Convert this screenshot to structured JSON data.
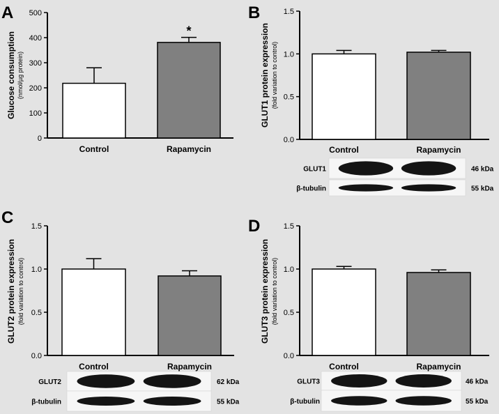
{
  "chart_data": [
    {
      "panel": "A",
      "type": "bar",
      "categories": [
        "Control",
        "Rapamycin"
      ],
      "values": [
        218,
        381
      ],
      "errors": [
        62,
        20
      ],
      "significance": [
        "",
        "*"
      ],
      "bar_colors": [
        "#ffffff",
        "#808080"
      ],
      "ylabel": "Glucose consumption",
      "ylabel_sub": "(nmol/µg protein)",
      "ylim": [
        0,
        500
      ],
      "yticks": [
        "0",
        "100",
        "200",
        "300",
        "400",
        "500"
      ],
      "grid": false,
      "blots": []
    },
    {
      "panel": "B",
      "type": "bar",
      "categories": [
        "Control",
        "Rapamycin"
      ],
      "values": [
        1.0,
        1.02
      ],
      "errors": [
        0.04,
        0.02
      ],
      "significance": [
        "",
        ""
      ],
      "bar_colors": [
        "#ffffff",
        "#808080"
      ],
      "ylabel": "GLUT1 protein expression",
      "ylabel_sub": "(fold variation to control)",
      "ylim": [
        0,
        1.5
      ],
      "yticks": [
        "0.0",
        "0.5",
        "1.0",
        "1.5"
      ],
      "grid": false,
      "blots": [
        {
          "label": "GLUT1",
          "kda": "46 kDa"
        },
        {
          "label": "β-tubulin",
          "kda": "55 kDa"
        }
      ]
    },
    {
      "panel": "C",
      "type": "bar",
      "categories": [
        "Control",
        "Rapamycin"
      ],
      "values": [
        1.0,
        0.92
      ],
      "errors": [
        0.12,
        0.06
      ],
      "significance": [
        "",
        ""
      ],
      "bar_colors": [
        "#ffffff",
        "#808080"
      ],
      "ylabel": "GLUT2 protein expression",
      "ylabel_sub": "(fold variation to control)",
      "ylim": [
        0,
        1.5
      ],
      "yticks": [
        "0.0",
        "0.5",
        "1.0",
        "1.5"
      ],
      "grid": false,
      "blots": [
        {
          "label": "GLUT2",
          "kda": "62 kDa"
        },
        {
          "label": "β-tubulin",
          "kda": "55 kDa"
        }
      ]
    },
    {
      "panel": "D",
      "type": "bar",
      "categories": [
        "Control",
        "Rapamycin"
      ],
      "values": [
        1.0,
        0.96
      ],
      "errors": [
        0.03,
        0.03
      ],
      "significance": [
        "",
        ""
      ],
      "bar_colors": [
        "#ffffff",
        "#808080"
      ],
      "ylabel": "GLUT3 protein expression",
      "ylabel_sub": "(fold variation to control)",
      "ylim": [
        0,
        1.5
      ],
      "yticks": [
        "0.0",
        "0.5",
        "1.0",
        "1.5"
      ],
      "grid": false,
      "blots": [
        {
          "label": "GLUT3",
          "kda": "46 kDa"
        },
        {
          "label": "β-tubulin",
          "kda": "55 kDa"
        }
      ]
    }
  ]
}
